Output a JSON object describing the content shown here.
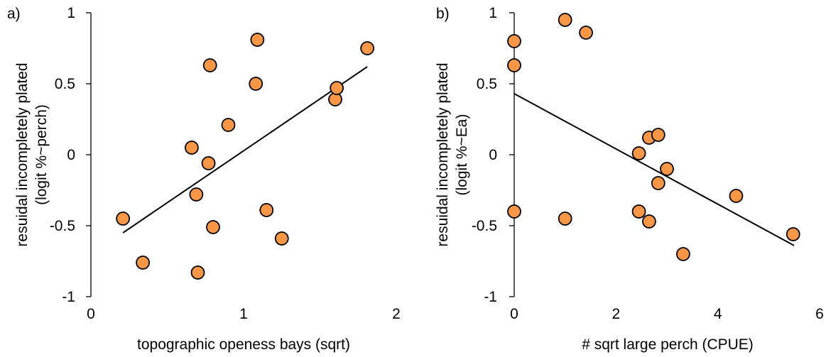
{
  "chart_data": [
    {
      "type": "scatter",
      "panel_label": "a)",
      "xlabel": "topographic openess bays (sqrt)",
      "ylabel_lines": [
        "resuidal incompletely plated",
        "(logit %~perch)"
      ],
      "xlim": [
        0,
        2
      ],
      "ylim": [
        -1,
        1
      ],
      "xticks": [
        0,
        1,
        2
      ],
      "yticks": [
        1,
        0.5,
        0,
        -0.5,
        -1
      ],
      "grid": false,
      "marker_color": "#F79646",
      "trendline": {
        "x": [
          0.21,
          1.81
        ],
        "y": [
          -0.55,
          0.62
        ]
      },
      "points": [
        {
          "x": 0.21,
          "y": -0.45
        },
        {
          "x": 0.34,
          "y": -0.76
        },
        {
          "x": 0.66,
          "y": 0.05
        },
        {
          "x": 0.69,
          "y": -0.28
        },
        {
          "x": 0.7,
          "y": -0.83
        },
        {
          "x": 0.77,
          "y": -0.06
        },
        {
          "x": 0.78,
          "y": 0.63
        },
        {
          "x": 0.8,
          "y": -0.51
        },
        {
          "x": 0.9,
          "y": 0.21
        },
        {
          "x": 1.08,
          "y": 0.5
        },
        {
          "x": 1.09,
          "y": 0.81
        },
        {
          "x": 1.15,
          "y": -0.39
        },
        {
          "x": 1.25,
          "y": -0.59
        },
        {
          "x": 1.6,
          "y": 0.39
        },
        {
          "x": 1.61,
          "y": 0.47
        },
        {
          "x": 1.81,
          "y": 0.75
        }
      ]
    },
    {
      "type": "scatter",
      "panel_label": "b)",
      "xlabel": "# sqrt large perch (CPUE)",
      "ylabel_lines": [
        "resuidal incompletely plated",
        "(logit %~Ea)"
      ],
      "xlim": [
        0,
        6
      ],
      "ylim": [
        -1,
        1
      ],
      "xticks": [
        0,
        2,
        4,
        6
      ],
      "yticks": [
        1,
        0.5,
        0,
        -0.5,
        -1
      ],
      "grid": false,
      "marker_color": "#F79646",
      "trendline": {
        "x": [
          0,
          5.5
        ],
        "y": [
          0.43,
          -0.64
        ]
      },
      "points": [
        {
          "x": 0.0,
          "y": 0.8
        },
        {
          "x": 0.0,
          "y": 0.63
        },
        {
          "x": 0.0,
          "y": -0.4
        },
        {
          "x": 1.0,
          "y": 0.95
        },
        {
          "x": 1.0,
          "y": -0.45
        },
        {
          "x": 1.41,
          "y": 0.86
        },
        {
          "x": 2.45,
          "y": 0.01
        },
        {
          "x": 2.45,
          "y": -0.4
        },
        {
          "x": 2.65,
          "y": -0.47
        },
        {
          "x": 2.65,
          "y": 0.12
        },
        {
          "x": 2.83,
          "y": 0.14
        },
        {
          "x": 2.83,
          "y": -0.2
        },
        {
          "x": 3.0,
          "y": -0.1
        },
        {
          "x": 3.32,
          "y": -0.7
        },
        {
          "x": 4.36,
          "y": -0.29
        },
        {
          "x": 5.48,
          "y": -0.56
        }
      ]
    }
  ]
}
